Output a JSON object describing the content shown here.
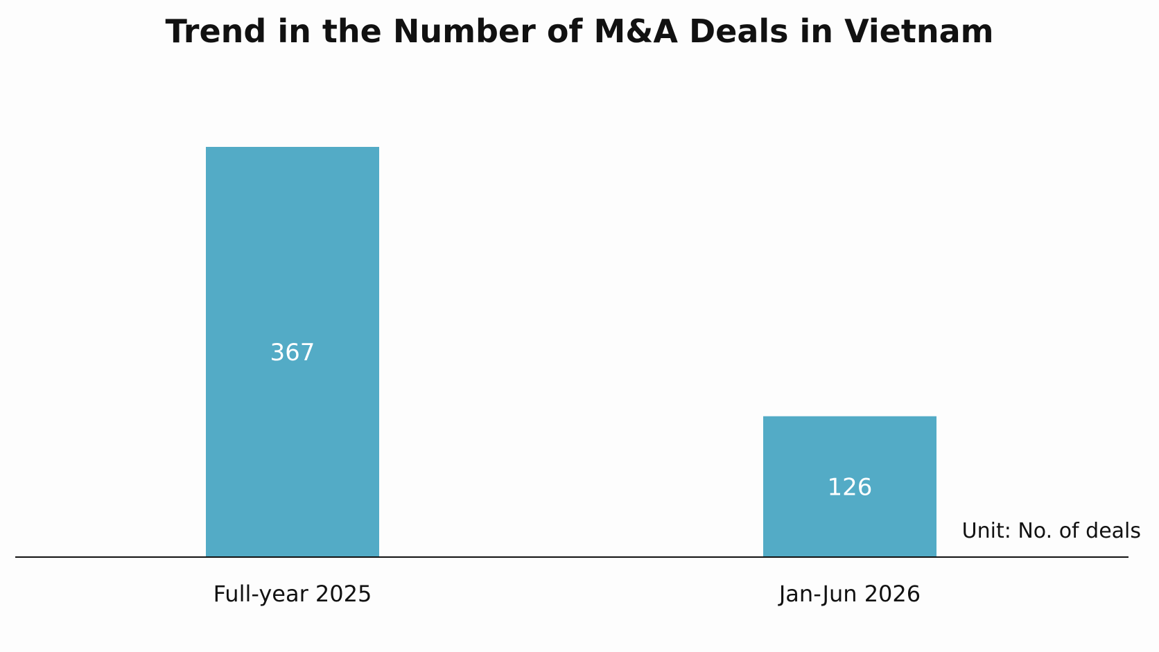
{
  "chart_data": {
    "type": "bar",
    "title": "Trend in the Number of M&A Deals in Vietnam",
    "categories": [
      "Full-year 2025",
      "Jan-Jun 2026"
    ],
    "values": [
      367,
      126
    ],
    "data_labels": [
      "367",
      "126"
    ],
    "unit_note": "Unit: No. of deals",
    "bar_color": "#53abc6",
    "xlabel": "",
    "ylabel": "",
    "grid": false,
    "legend": "none"
  }
}
